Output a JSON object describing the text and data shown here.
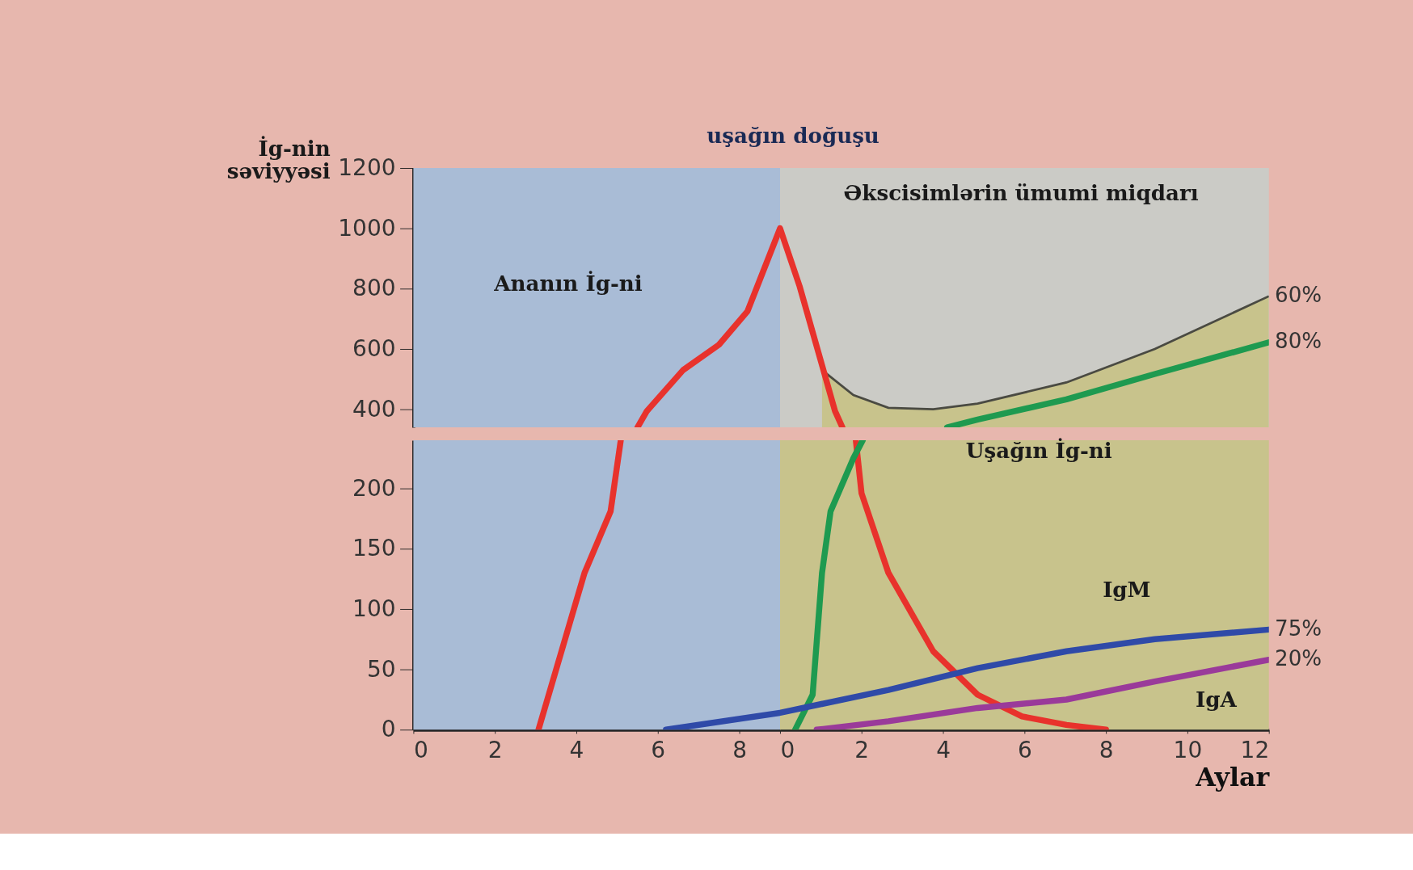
{
  "chart_data": [
    {
      "type": "line",
      "ylabel": "İg-nin səviyyəsi",
      "xlim": [
        0,
        9
      ],
      "ylim": [
        340,
        1200
      ],
      "yticks": [
        400,
        600,
        800,
        1000,
        1200
      ],
      "tick_labels": "y",
      "grid": false,
      "line_style": "solid",
      "marker": "none",
      "bands": [
        {
          "axis": "x",
          "from": 0,
          "to": 9,
          "color": "#a9bcd6"
        }
      ],
      "series": [
        {
          "color": "#e8322c",
          "x": [
            5.5,
            5.73,
            6.62,
            7.5,
            8.2,
            9
          ],
          "values": [
            340,
            394,
            530,
            614,
            725,
            1000
          ]
        }
      ],
      "annotations": [
        "Ananın İg-ni"
      ]
    },
    {
      "type": "line",
      "xlim": [
        0,
        12
      ],
      "ylim": [
        340,
        1200
      ],
      "tick_labels": false,
      "grid": false,
      "line_style": "solid",
      "marker": "none",
      "bands": [
        {
          "axis": "x",
          "from": 0,
          "to": 12,
          "color": "#cbcbc6"
        }
      ],
      "series": [
        {
          "type": "area",
          "color": "#c8c38c",
          "x": [
            1.03,
            1.8,
            2.66,
            3.76,
            4.85,
            7.03,
            9.2,
            12
          ],
          "values": [
            530,
            447,
            405,
            400,
            419,
            489,
            600,
            775
          ]
        },
        {
          "color": "#e8322c",
          "x": [
            0,
            0.48,
            1.35,
            1.53
          ],
          "values": [
            1000,
            808,
            394,
            340
          ]
        },
        {
          "color": "#1e9a50",
          "x": [
            4.1,
            4.85,
            7.03,
            9.2,
            12
          ],
          "values": [
            340,
            366,
            433,
            517,
            622
          ]
        }
      ],
      "annotations": [
        "Əkscisimlərin ümumi miqdarı",
        "uşağın doğuşu",
        "60%",
        "80%"
      ]
    },
    {
      "type": "line",
      "xlim": [
        0,
        9
      ],
      "xticks": [
        0,
        2,
        4,
        6,
        8
      ],
      "ylim": [
        0,
        240
      ],
      "yticks": [
        0,
        50,
        100,
        150,
        200
      ],
      "grid": false,
      "line_style": "solid",
      "marker": "none",
      "bands": [
        {
          "axis": "x",
          "from": 0,
          "to": 9,
          "color": "#a9bcd6"
        }
      ],
      "series": [
        {
          "color": "#e8322c",
          "x": [
            3.07,
            4.2,
            4.84,
            5.09
          ],
          "values": [
            0,
            130,
            181,
            240
          ]
        },
        {
          "color": "#2f4aa8",
          "x": [
            6.2,
            9
          ],
          "values": [
            0,
            14
          ]
        }
      ]
    },
    {
      "type": "line",
      "xlabel": "Aylar",
      "xlim": [
        0,
        12
      ],
      "xticks": [
        0,
        2,
        4,
        6,
        8,
        10,
        12
      ],
      "ylim": [
        0,
        240
      ],
      "tick_labels": "x",
      "grid": false,
      "line_style": "solid",
      "marker": "none",
      "bands": [
        {
          "axis": "x",
          "from": 0,
          "to": 12,
          "color": "#c8c38c"
        }
      ],
      "series": [
        {
          "color": "#e8322c",
          "x": [
            1.86,
            2.0,
            2.66,
            3.76,
            4.85,
            5.94,
            7.03,
            8.0
          ],
          "values": [
            240,
            196,
            130,
            65,
            29,
            11,
            4,
            0
          ]
        },
        {
          "color": "#1e9a50",
          "x": [
            0.37,
            0.8,
            1.03,
            1.24,
            1.8,
            2.03
          ],
          "values": [
            0,
            29,
            130,
            181,
            225,
            240
          ]
        },
        {
          "color": "#2f4aa8",
          "x": [
            0,
            2.66,
            4.85,
            7.03,
            9.2,
            12
          ],
          "values": [
            14,
            33,
            51,
            65,
            75,
            83
          ]
        },
        {
          "color": "#9a3a9a",
          "x": [
            0.9,
            2.66,
            4.85,
            7.03,
            9.2,
            12
          ],
          "values": [
            0,
            7,
            18,
            25,
            40,
            58
          ]
        }
      ],
      "annotations": [
        "Uşağın İg-ni",
        "IgM",
        "IgA",
        "75%",
        "20%"
      ]
    }
  ]
}
